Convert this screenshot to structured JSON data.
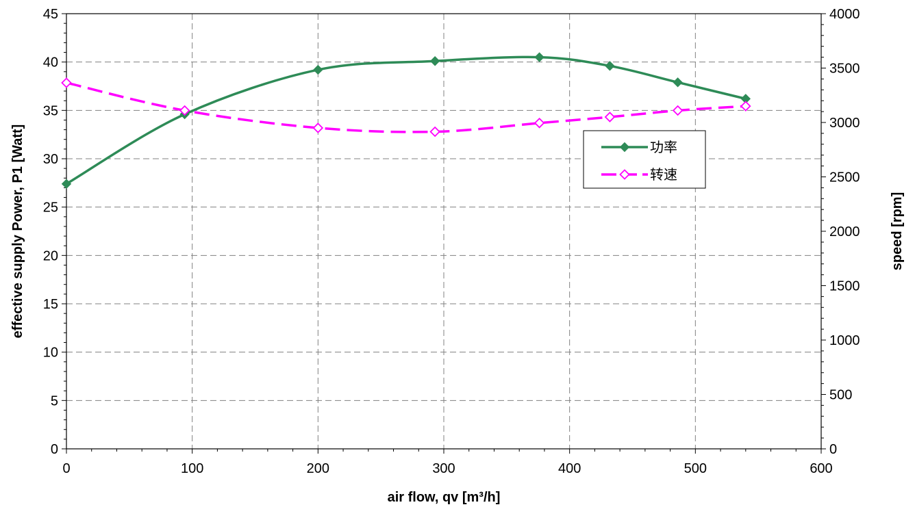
{
  "chart_data": {
    "type": "line",
    "xlabel": "air flow, qv [m³/h]",
    "ylabel_left": "effective supply Power, P1 [Watt]",
    "ylabel_right": "speed [rpm]",
    "xlim": [
      0,
      600
    ],
    "ylim_left": [
      0,
      45
    ],
    "ylim_right": [
      0,
      4000
    ],
    "x_ticks": [
      0,
      100,
      200,
      300,
      400,
      500,
      600
    ],
    "y_left_ticks": [
      0,
      5,
      10,
      15,
      20,
      25,
      30,
      35,
      40,
      45
    ],
    "y_right_ticks": [
      0,
      500,
      1000,
      1500,
      2000,
      2500,
      3000,
      3500,
      4000
    ],
    "grid": true,
    "legend_position": "right",
    "series": [
      {
        "name": "功率",
        "axis": "left",
        "color": "#2e8b57",
        "marker": "filled-diamond",
        "line_style": "solid",
        "x": [
          0,
          94,
          200,
          293,
          376,
          432,
          486,
          540
        ],
        "y": [
          27.4,
          34.6,
          39.2,
          40.1,
          40.5,
          39.6,
          37.9,
          36.2
        ]
      },
      {
        "name": "转速",
        "axis": "right",
        "color": "#ff00ff",
        "marker": "open-diamond",
        "line_style": "dashed",
        "x": [
          0,
          94,
          200,
          293,
          376,
          432,
          486,
          540
        ],
        "y": [
          3365,
          3110,
          2950,
          2915,
          2995,
          3050,
          3110,
          3150
        ]
      }
    ]
  }
}
